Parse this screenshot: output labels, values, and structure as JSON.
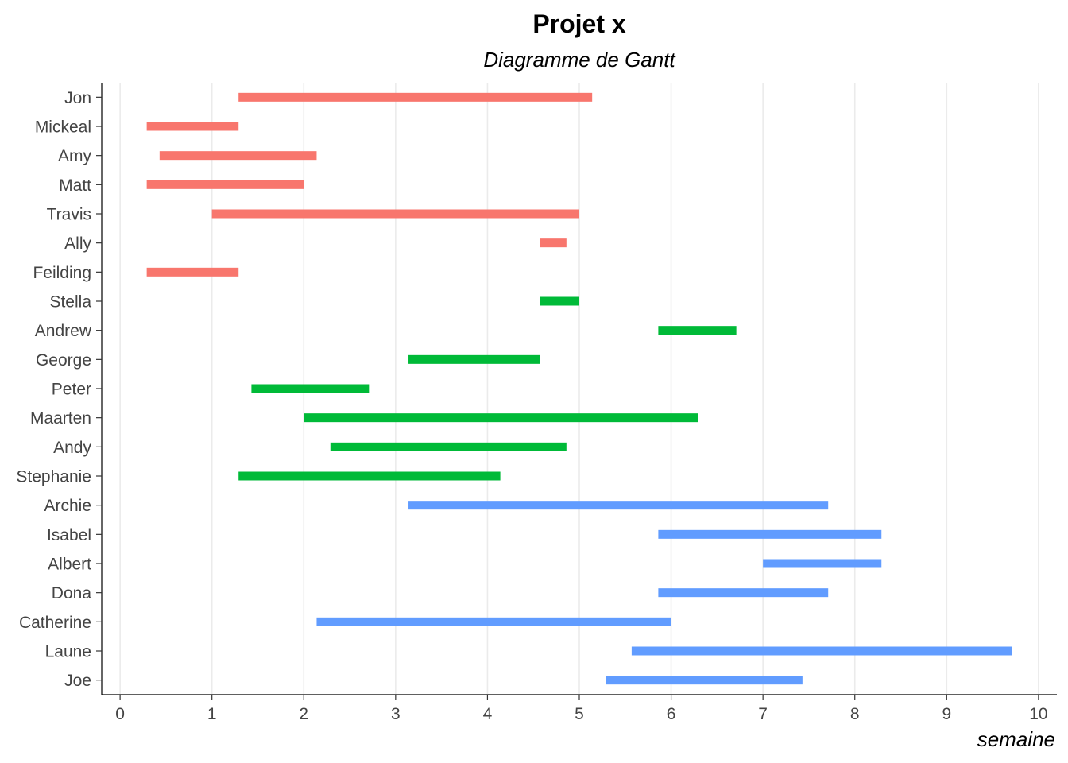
{
  "chart_data": {
    "type": "gantt",
    "title": "Projet x",
    "subtitle": "Diagramme de Gantt",
    "xlabel": "semaine",
    "ylabel": "",
    "xlim": [
      -0.2,
      10.2
    ],
    "x_ticks": [
      "0",
      "1",
      "2",
      "3",
      "4",
      "5",
      "6",
      "7",
      "8",
      "9",
      "10"
    ],
    "grid": "vertical-major",
    "colors": [
      "#F8766D",
      "#00BA38",
      "#619CFF"
    ],
    "tasks": [
      {
        "name": "Jon",
        "start": 1.29,
        "end": 5.14,
        "group": 0
      },
      {
        "name": "Mickeal",
        "start": 0.29,
        "end": 1.29,
        "group": 0
      },
      {
        "name": "Amy",
        "start": 0.43,
        "end": 2.14,
        "group": 0
      },
      {
        "name": "Matt",
        "start": 0.29,
        "end": 2.0,
        "group": 0
      },
      {
        "name": "Travis",
        "start": 1.0,
        "end": 5.0,
        "group": 0
      },
      {
        "name": "Ally",
        "start": 4.57,
        "end": 4.86,
        "group": 0
      },
      {
        "name": "Feilding",
        "start": 0.29,
        "end": 1.29,
        "group": 0
      },
      {
        "name": "Stella",
        "start": 4.57,
        "end": 5.0,
        "group": 1
      },
      {
        "name": "Andrew",
        "start": 5.86,
        "end": 6.71,
        "group": 1
      },
      {
        "name": "George",
        "start": 3.14,
        "end": 4.57,
        "group": 1
      },
      {
        "name": "Peter",
        "start": 1.43,
        "end": 2.71,
        "group": 1
      },
      {
        "name": "Maarten",
        "start": 2.0,
        "end": 6.29,
        "group": 1
      },
      {
        "name": "Andy",
        "start": 2.29,
        "end": 4.86,
        "group": 1
      },
      {
        "name": "Stephanie",
        "start": 1.29,
        "end": 4.14,
        "group": 1
      },
      {
        "name": "Archie",
        "start": 3.14,
        "end": 7.71,
        "group": 2
      },
      {
        "name": "Isabel",
        "start": 5.86,
        "end": 8.29,
        "group": 2
      },
      {
        "name": "Albert",
        "start": 7.0,
        "end": 8.29,
        "group": 2
      },
      {
        "name": "Dona",
        "start": 5.86,
        "end": 7.71,
        "group": 2
      },
      {
        "name": "Catherine",
        "start": 2.14,
        "end": 6.0,
        "group": 2
      },
      {
        "name": "Laune",
        "start": 5.57,
        "end": 9.71,
        "group": 2
      },
      {
        "name": "Joe",
        "start": 5.29,
        "end": 7.43,
        "group": 2
      }
    ]
  }
}
